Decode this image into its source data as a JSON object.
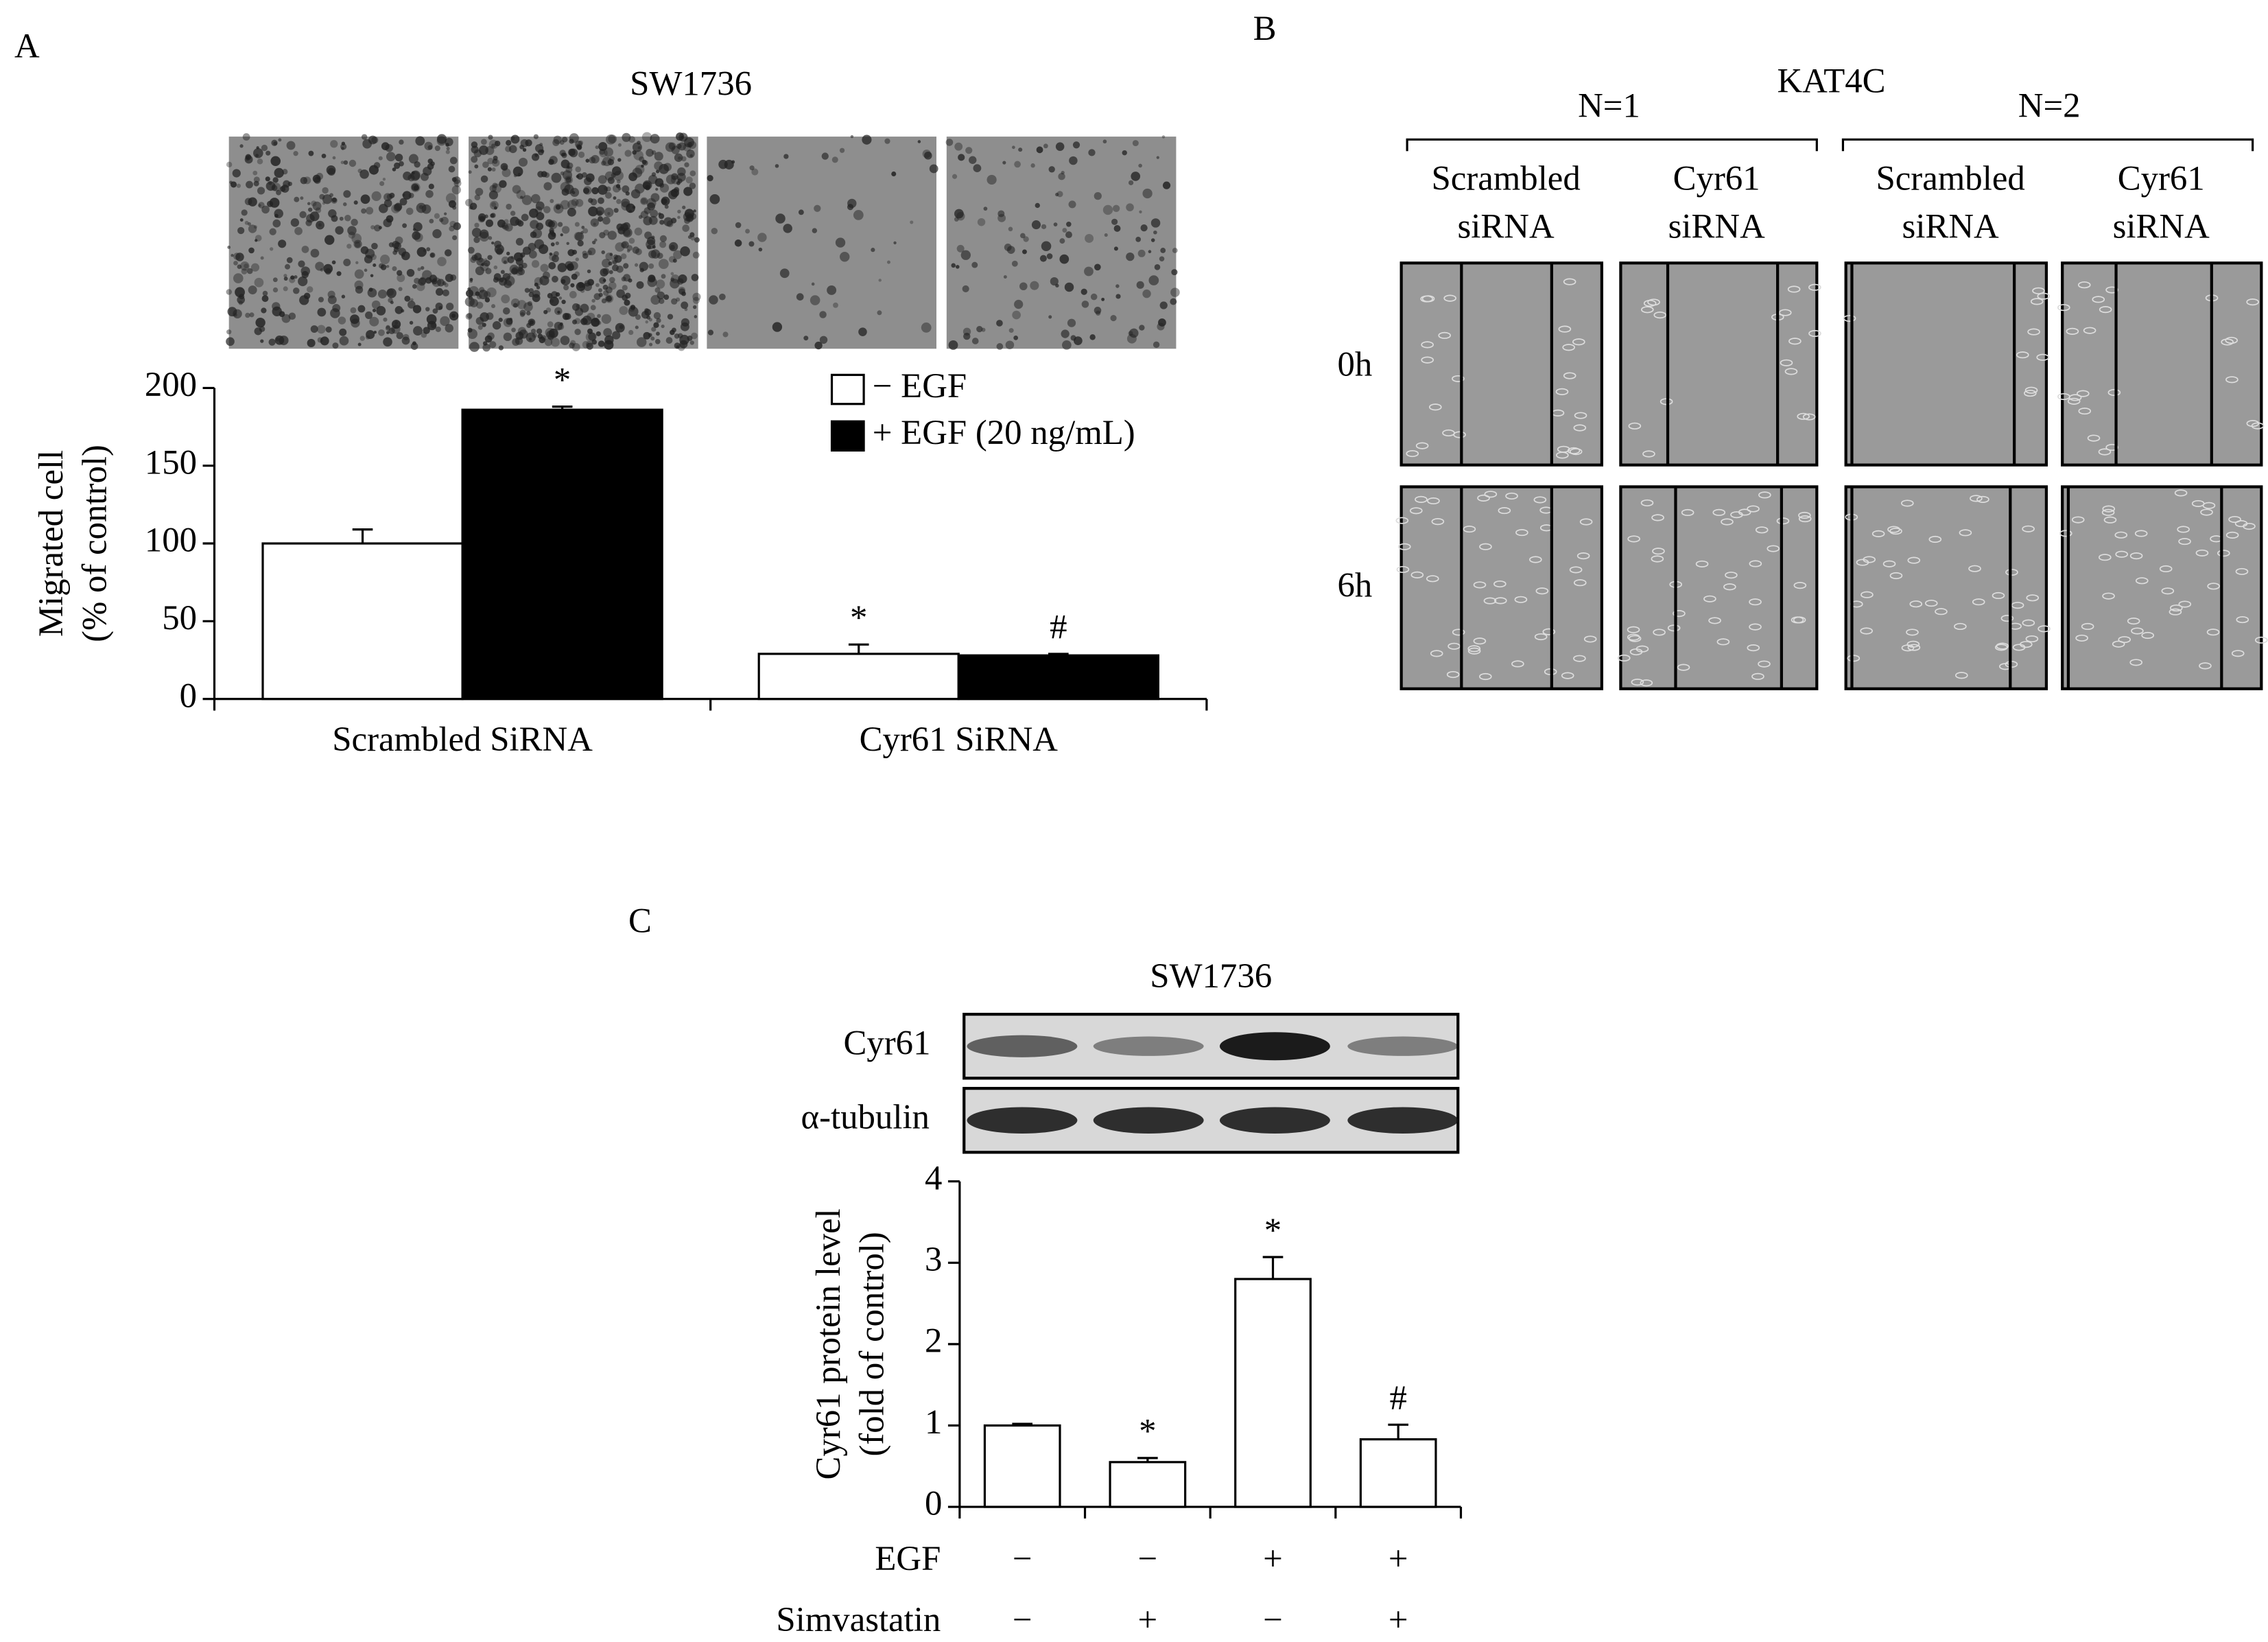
{
  "panel_labels": [
    "A",
    "B",
    "C"
  ],
  "chart_data": [
    {
      "type": "bar",
      "title": "SW1736",
      "ylabel": [
        "Migrated cell",
        "(% of control)"
      ],
      "categories": [
        "Scrambled SiRNA",
        "Cyr61 SiRNA"
      ],
      "series": [
        {
          "name": "− EGF",
          "color": "#ffffff",
          "values": [
            100,
            29
          ],
          "errors": [
            9,
            6
          ],
          "annotations": [
            null,
            "*"
          ]
        },
        {
          "name": "+ EGF (20 ng/mL)",
          "color": "#000000",
          "values": [
            186,
            28
          ],
          "errors": [
            2,
            1
          ],
          "annotations": [
            "*",
            "#"
          ]
        }
      ],
      "ylim": [
        0,
        200
      ],
      "yticks": [
        0,
        50,
        100,
        150,
        200
      ],
      "grid": false,
      "legend": "top-right"
    },
    {
      "type": "bar",
      "title": "SW1736",
      "ylabel": [
        "Cyr61 protein level",
        "(fold of control)"
      ],
      "blots": [
        "Cyr61",
        "α-tubulin"
      ],
      "categories": [
        null,
        null,
        null,
        null
      ],
      "values": [
        1,
        0.55,
        2.8,
        0.83
      ],
      "errors": [
        0.02,
        0.05,
        0.27,
        0.18
      ],
      "annotations": [
        null,
        "*",
        "*",
        "#"
      ],
      "color": "#ffffff",
      "conditions": [
        {
          "name": "EGF",
          "values": [
            "−",
            "−",
            "+",
            "+"
          ]
        },
        {
          "name": "Simvastatin",
          "values": [
            "−",
            "+",
            "−",
            "+"
          ]
        }
      ],
      "ylim": [
        0,
        4
      ],
      "yticks": [
        0,
        1,
        2,
        3,
        4
      ],
      "grid": false
    }
  ],
  "panel_b": {
    "title": "KAT4C",
    "groups": [
      "N=1",
      "N=2"
    ],
    "columns": [
      [
        "Scrambled",
        "siRNA"
      ],
      [
        "Cyr61",
        "siRNA"
      ],
      [
        "Scrambled",
        "siRNA"
      ],
      [
        "Cyr61",
        "siRNA"
      ]
    ],
    "rows": [
      "0h",
      "6h"
    ]
  }
}
